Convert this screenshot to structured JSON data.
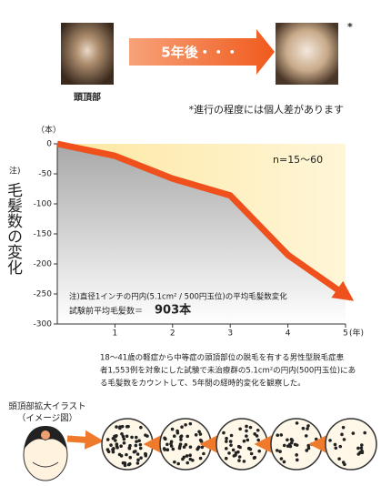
{
  "header": {
    "caption": "頭頂部",
    "arrow_label": "5年後・・・",
    "asterisk": "*",
    "note": "*進行の程度には個人差があります"
  },
  "chart_data": {
    "type": "line",
    "title": "毛髪数の変化",
    "title_prefix": "注)",
    "y_unit": "（本）",
    "x_unit": "(年)",
    "x": [
      0,
      1,
      2,
      3,
      4,
      5
    ],
    "values": [
      0,
      -20,
      -58,
      -86,
      -185,
      -252
    ],
    "color": "#f0501c",
    "xlim": [
      0,
      5
    ],
    "xticks": [
      1,
      2,
      3,
      4,
      5
    ],
    "ylim": [
      -300,
      0
    ],
    "yticks": [
      0,
      -50,
      -100,
      -150,
      -200,
      -250,
      -300
    ],
    "annotation": "n=15〜60",
    "note_line1": "注)直径1インチの円内(5.1cm² / 500円玉位)の平均毛髪数変化",
    "note_line2": "試験前平均毛髪数＝",
    "note_value": "903本"
  },
  "footnote": [
    "18〜41歳の軽症から中等症の頭頂部位の脱毛を有する男性型脱毛症患",
    "者1,553例を対象にした試験で未治療群の5.1cm²の円内(500円玉位)にあ",
    "る毛髪数をカウントして、5年間の経時的変化を観察した。"
  ],
  "illustration": {
    "title": "頭頂部拡大イラスト",
    "subtitle": "（イメージ図）"
  }
}
